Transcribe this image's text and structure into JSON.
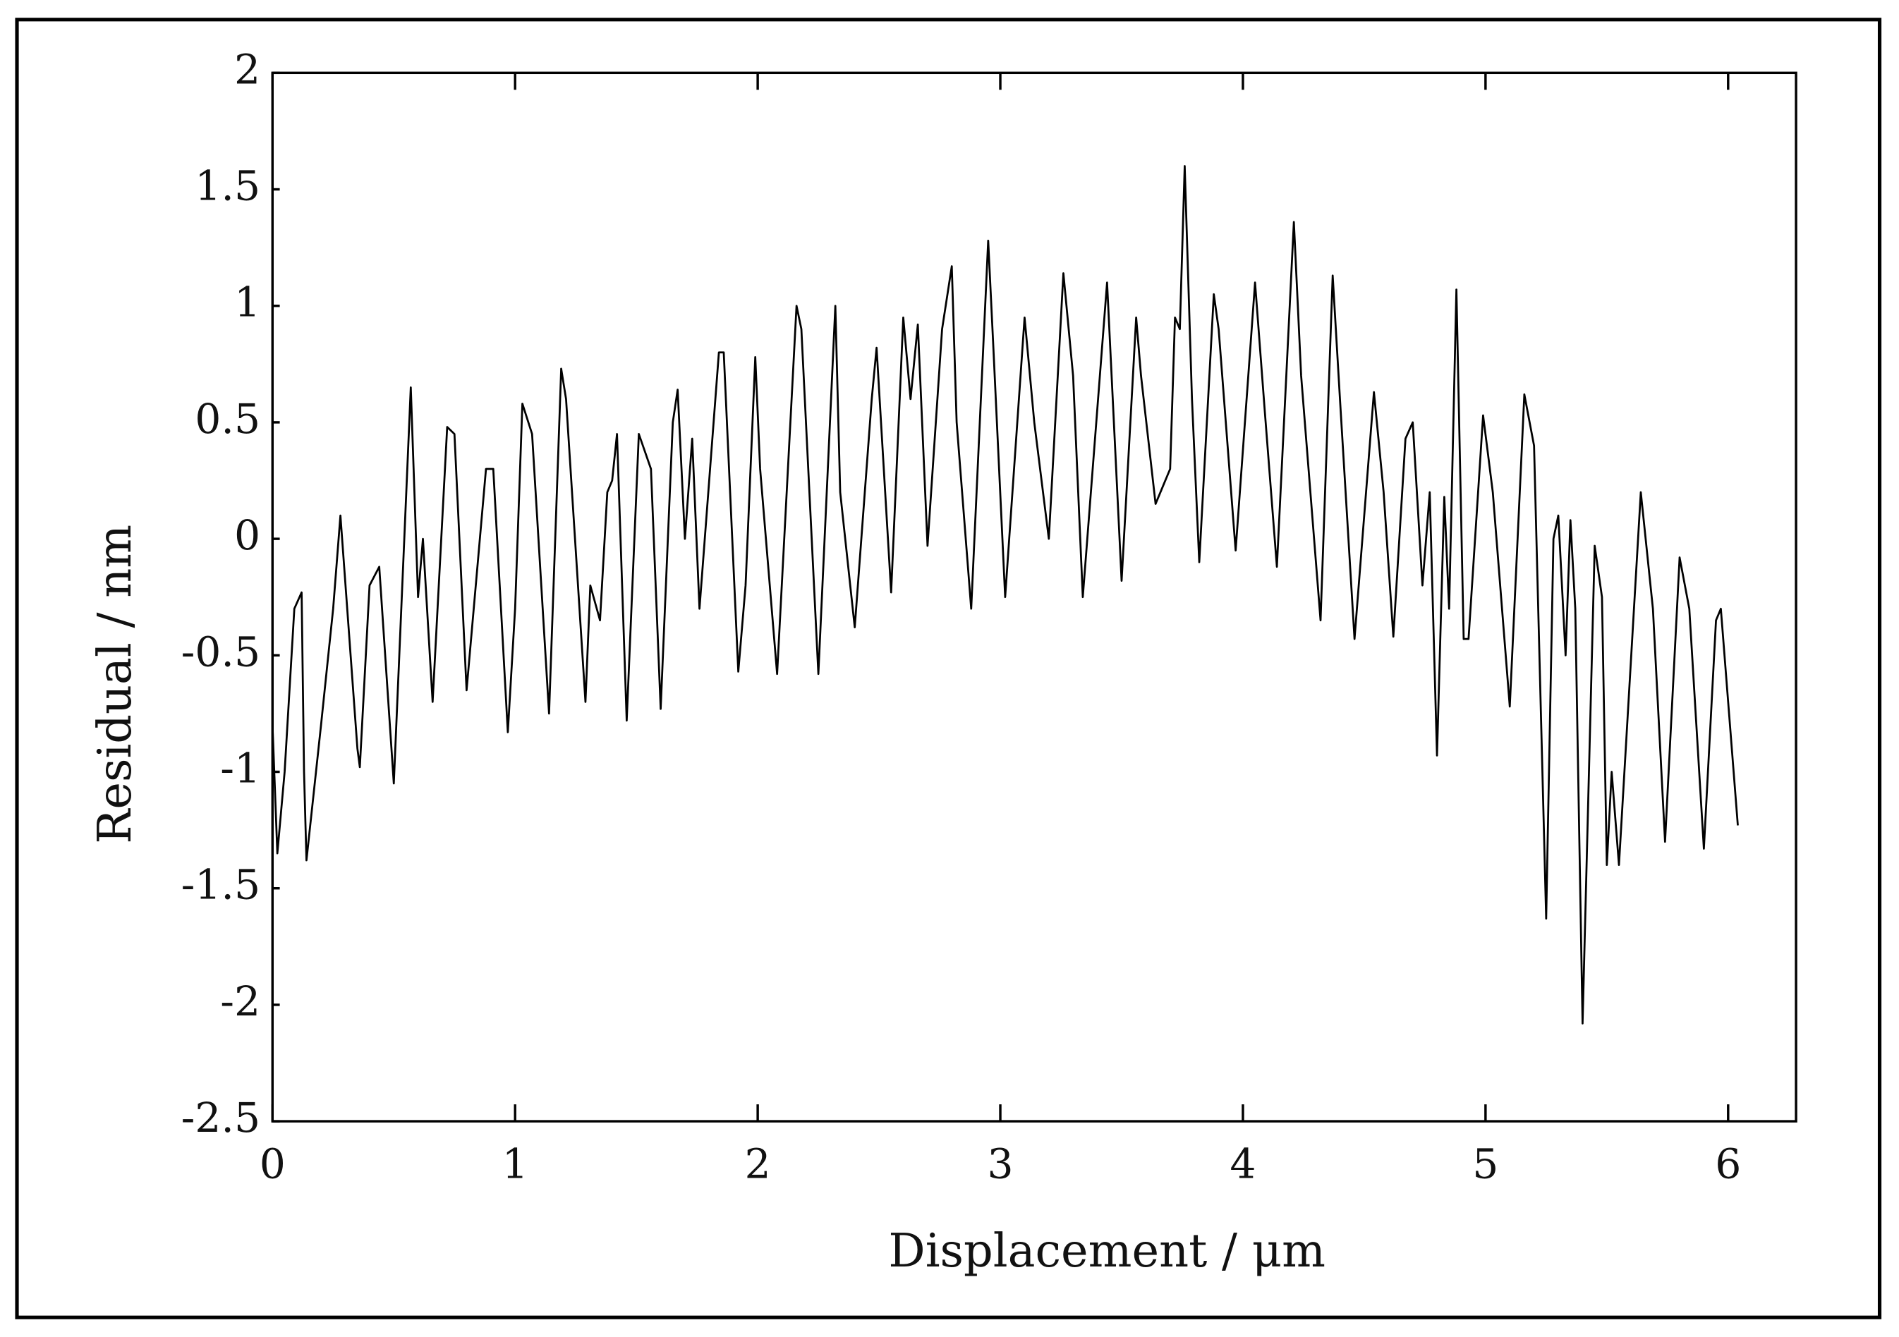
{
  "chart_data": {
    "type": "line",
    "x_label": "Displacement / μm",
    "y_label": "Residual / nm",
    "xlim": [
      0,
      6.28
    ],
    "xticks": [
      0,
      1,
      2,
      3,
      4,
      5,
      6
    ],
    "ylim": [
      -2.5,
      2
    ],
    "yticks": [
      -2.5,
      -2,
      -1.5,
      -1,
      -0.5,
      0,
      0.5,
      1,
      1.5,
      2
    ],
    "grid": false,
    "series": [
      {
        "color": "#000000",
        "x": [
          0,
          0.02,
          0.05,
          0.09,
          0.12,
          0.13,
          0.14,
          0.2,
          0.25,
          0.28,
          0.35,
          0.36,
          0.4,
          0.44,
          0.5,
          0.57,
          0.6,
          0.62,
          0.66,
          0.72,
          0.75,
          0.8,
          0.88,
          0.91,
          0.97,
          1.0,
          1.03,
          1.07,
          1.14,
          1.19,
          1.21,
          1.29,
          1.31,
          1.35,
          1.38,
          1.4,
          1.42,
          1.46,
          1.51,
          1.56,
          1.6,
          1.65,
          1.67,
          1.7,
          1.73,
          1.76,
          1.84,
          1.86,
          1.92,
          1.95,
          1.99,
          2.01,
          2.08,
          2.16,
          2.18,
          2.25,
          2.32,
          2.34,
          2.4,
          2.47,
          2.49,
          2.55,
          2.6,
          2.63,
          2.66,
          2.7,
          2.76,
          2.8,
          2.82,
          2.88,
          2.95,
          2.97,
          3.02,
          3.1,
          3.14,
          3.2,
          3.26,
          3.3,
          3.34,
          3.44,
          3.5,
          3.56,
          3.58,
          3.64,
          3.7,
          3.72,
          3.74,
          3.76,
          3.79,
          3.82,
          3.88,
          3.9,
          3.97,
          4.05,
          4.09,
          4.14,
          4.21,
          4.24,
          4.32,
          4.37,
          4.4,
          4.46,
          4.54,
          4.58,
          4.62,
          4.67,
          4.7,
          4.74,
          4.77,
          4.8,
          4.83,
          4.85,
          4.88,
          4.91,
          4.93,
          4.99,
          5.03,
          5.1,
          5.16,
          5.2,
          5.25,
          5.28,
          5.3,
          5.33,
          5.35,
          5.37,
          5.4,
          5.45,
          5.48,
          5.5,
          5.52,
          5.55,
          5.64,
          5.69,
          5.74,
          5.8,
          5.84,
          5.9,
          5.95,
          5.97,
          6.04
        ],
        "values": [
          -0.8,
          -1.35,
          -1.0,
          -0.3,
          -0.23,
          -1.0,
          -1.38,
          -0.8,
          -0.3,
          0.1,
          -0.9,
          -0.98,
          -0.2,
          -0.12,
          -1.05,
          0.65,
          -0.25,
          0.0,
          -0.7,
          0.48,
          0.45,
          -0.65,
          0.3,
          0.3,
          -0.83,
          -0.3,
          0.58,
          0.45,
          -0.75,
          0.73,
          0.6,
          -0.7,
          -0.2,
          -0.35,
          0.2,
          0.25,
          0.45,
          -0.78,
          0.45,
          0.3,
          -0.73,
          0.5,
          0.64,
          0.0,
          0.43,
          -0.3,
          0.8,
          0.8,
          -0.57,
          -0.2,
          0.78,
          0.3,
          -0.58,
          1.0,
          0.9,
          -0.58,
          1.0,
          0.2,
          -0.38,
          0.6,
          0.82,
          -0.23,
          0.95,
          0.6,
          0.92,
          -0.03,
          0.9,
          1.17,
          0.5,
          -0.3,
          1.28,
          0.85,
          -0.25,
          0.95,
          0.5,
          0.0,
          1.14,
          0.7,
          -0.25,
          1.1,
          -0.18,
          0.95,
          0.7,
          0.15,
          0.3,
          0.95,
          0.9,
          1.6,
          0.6,
          -0.1,
          1.05,
          0.9,
          -0.05,
          1.1,
          0.55,
          -0.12,
          1.36,
          0.7,
          -0.35,
          1.13,
          0.6,
          -0.43,
          0.63,
          0.2,
          -0.42,
          0.43,
          0.5,
          -0.2,
          0.2,
          -0.93,
          0.18,
          -0.3,
          1.07,
          -0.43,
          -0.43,
          0.53,
          0.2,
          -0.72,
          0.62,
          0.4,
          -1.63,
          0.0,
          0.1,
          -0.5,
          0.08,
          -0.3,
          -2.08,
          -0.03,
          -0.25,
          -1.4,
          -1.0,
          -1.4,
          0.2,
          -0.3,
          -1.3,
          -0.08,
          -0.3,
          -1.33,
          -0.35,
          -0.3,
          -1.23
        ]
      }
    ]
  }
}
